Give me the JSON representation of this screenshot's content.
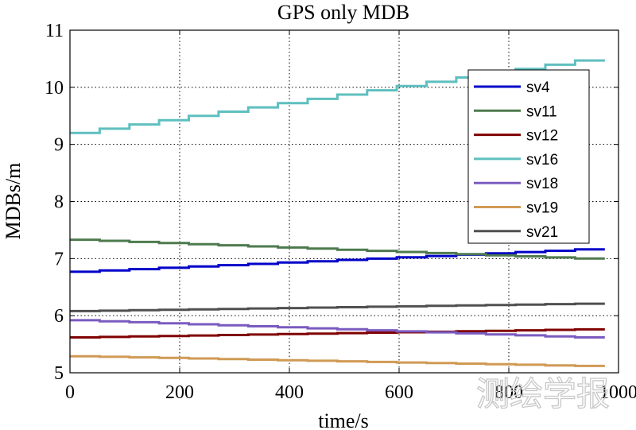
{
  "chart_data": {
    "type": "line",
    "title": "GPS only MDB",
    "xlabel": "time/s",
    "ylabel": "MDBs/m",
    "xlim": [
      0,
      1000
    ],
    "ylim": [
      5,
      11
    ],
    "xticks": [
      0,
      200,
      400,
      600,
      800,
      1000
    ],
    "yticks": [
      5,
      6,
      7,
      8,
      9,
      10,
      11
    ],
    "grid": true,
    "legend_position": "top-right",
    "watermark": "测绘学报",
    "series": [
      {
        "name": "sv4",
        "color": "#0000c8",
        "x": [
          0,
          975
        ],
        "y": [
          6.77,
          7.16
        ]
      },
      {
        "name": "sv11",
        "color": "#4e7a4e",
        "x": [
          0,
          975
        ],
        "y": [
          7.33,
          7.0
        ]
      },
      {
        "name": "sv12",
        "color": "#800000",
        "x": [
          0,
          975
        ],
        "y": [
          5.62,
          5.76
        ]
      },
      {
        "name": "sv16",
        "color": "#5fbfbf",
        "x": [
          0,
          975
        ],
        "y": [
          9.2,
          10.47
        ]
      },
      {
        "name": "sv18",
        "color": "#7a5bc0",
        "x": [
          0,
          975
        ],
        "y": [
          5.92,
          5.62
        ]
      },
      {
        "name": "sv19",
        "color": "#d09a55",
        "x": [
          0,
          975
        ],
        "y": [
          5.29,
          5.12
        ]
      },
      {
        "name": "sv21",
        "color": "#505050",
        "x": [
          0,
          975
        ],
        "y": [
          6.08,
          6.21
        ]
      }
    ]
  }
}
